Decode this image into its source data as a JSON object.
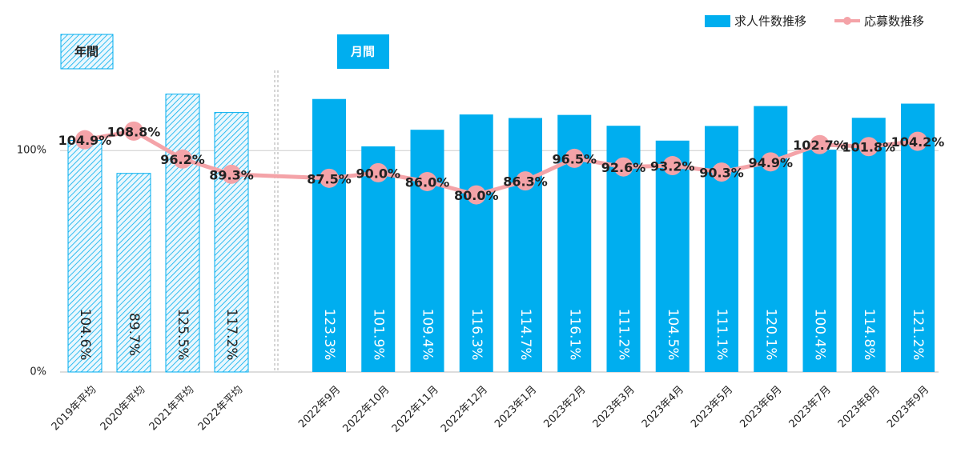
{
  "chart_data": {
    "type": "bar",
    "section_labels": [
      "年間",
      "月間"
    ],
    "categories": [
      "2019年平均",
      "2020年平均",
      "2021年平均",
      "2022年平均",
      "2022年9月",
      "2022年10月",
      "2022年11月",
      "2022年12月",
      "2023年1月",
      "2023年2月",
      "2023年3月",
      "2023年4月",
      "2023年5月",
      "2023年6月",
      "2023年7月",
      "2023年8月",
      "2023年9月"
    ],
    "series": [
      {
        "name": "求人件数推移",
        "type": "bar",
        "color": "#00aeef",
        "values": [
          104.6,
          89.7,
          125.5,
          117.2,
          123.3,
          101.9,
          109.4,
          116.3,
          114.7,
          116.1,
          111.2,
          104.5,
          111.1,
          120.1,
          100.4,
          114.8,
          121.2
        ],
        "value_labels": [
          "104.6%",
          "89.7%",
          "125.5%",
          "117.2%",
          "123.3%",
          "101.9%",
          "109.4%",
          "116.3%",
          "114.7%",
          "116.1%",
          "111.2%",
          "104.5%",
          "111.1%",
          "120.1%",
          "100.4%",
          "114.8%",
          "121.2%"
        ]
      },
      {
        "name": "応募数推移",
        "type": "line",
        "color": "#f4a3a8",
        "values": [
          104.9,
          108.8,
          96.2,
          89.3,
          87.5,
          90.0,
          86.0,
          80.0,
          86.3,
          96.5,
          92.6,
          93.2,
          90.3,
          94.9,
          102.7,
          101.8,
          104.2
        ],
        "value_labels": [
          "104.9%",
          "108.8%",
          "96.2%",
          "89.3%",
          "87.5%",
          "90.0%",
          "86.0%",
          "80.0%",
          "86.3%",
          "96.5%",
          "92.6%",
          "93.2%",
          "90.3%",
          "94.9%",
          "102.7%",
          "101.8%",
          "104.2%"
        ]
      }
    ],
    "ylim": [
      0,
      168
    ],
    "yticks": [
      {
        "value": 0,
        "label": "0%"
      },
      {
        "value": 100,
        "label": "100%"
      }
    ],
    "grid": true,
    "legend": "top-right"
  }
}
